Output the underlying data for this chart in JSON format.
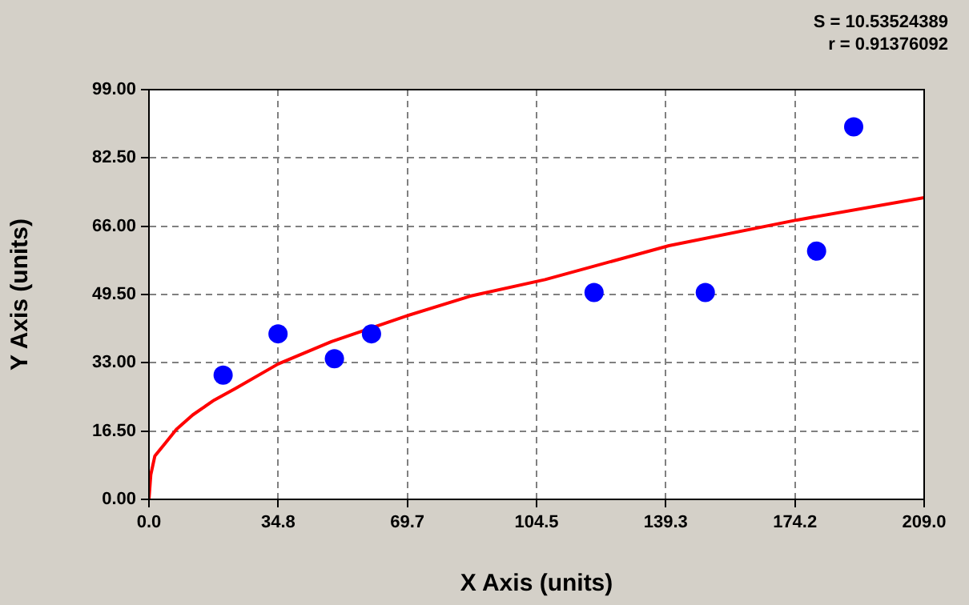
{
  "chart_data": {
    "type": "scatter",
    "xlabel": "X Axis (units)",
    "ylabel": "Y Axis (units)",
    "xlim": [
      0,
      209
    ],
    "ylim": [
      0,
      99
    ],
    "xticks": [
      {
        "value": 0,
        "label": "0.0"
      },
      {
        "value": 34.83,
        "label": "34.8"
      },
      {
        "value": 69.67,
        "label": "69.7"
      },
      {
        "value": 104.5,
        "label": "104.5"
      },
      {
        "value": 139.33,
        "label": "139.3"
      },
      {
        "value": 174.17,
        "label": "174.2"
      },
      {
        "value": 209,
        "label": "209.0"
      }
    ],
    "yticks": [
      {
        "value": 0,
        "label": "0.00"
      },
      {
        "value": 16.5,
        "label": "16.50"
      },
      {
        "value": 33,
        "label": "33.00"
      },
      {
        "value": 49.5,
        "label": "49.50"
      },
      {
        "value": 66,
        "label": "66.00"
      },
      {
        "value": 82.5,
        "label": "82.50"
      },
      {
        "value": 99,
        "label": "99.00"
      }
    ],
    "grid": true,
    "legend": false,
    "line_style": "solid",
    "annotations": [
      "S = 10.53524389",
      "r = 0.91376092"
    ],
    "series": [
      {
        "type": "scatter",
        "color": "#0000ff",
        "marker": "circle",
        "x": [
          20,
          34.8,
          50,
          60,
          120,
          150,
          180,
          190
        ],
        "values": [
          30,
          40,
          34,
          40,
          50,
          50,
          60,
          90
        ]
      },
      {
        "type": "line",
        "color": "#ff0000",
        "marker": "none",
        "x": [
          0,
          0.5,
          1.6,
          4.5,
          7.4,
          11.8,
          17.6,
          23.3,
          34.8,
          49.2,
          69.4,
          86.6,
          106.8,
          140.2,
          174.7,
          209
        ],
        "values": [
          0,
          6,
          10.5,
          13.7,
          16.9,
          20.4,
          24,
          26.8,
          32.7,
          38.1,
          44.3,
          49.1,
          53.1,
          61.3,
          67.5,
          72.9
        ]
      }
    ]
  }
}
